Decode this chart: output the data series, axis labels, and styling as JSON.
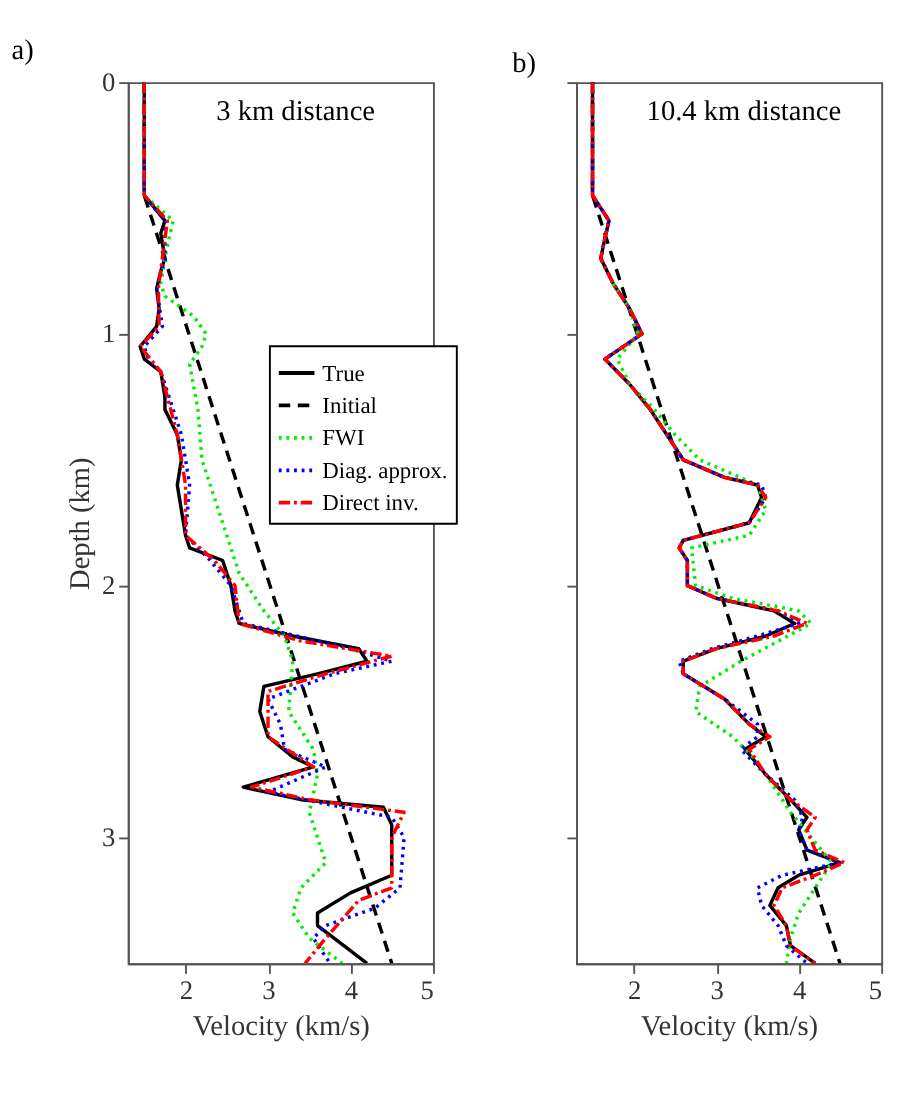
{
  "chart_data": [
    {
      "type": "line",
      "title": "a)",
      "annotations": [
        "3 km distance"
      ],
      "xlabel": "Velocity (km/s)",
      "ylabel": "Depth (km)",
      "xlim": [
        1.3,
        5
      ],
      "xticks": [
        2,
        3,
        4,
        5
      ],
      "ylim": [
        3.5,
        0
      ],
      "yticks": [
        0,
        1,
        2,
        3
      ],
      "grid": false,
      "legend": "right",
      "series": [
        {
          "name": "True",
          "color": "#000000",
          "line_style": "solid",
          "x": [
            1.5,
            1.5,
            1.75,
            1.7,
            1.75,
            1.7,
            1.65,
            1.68,
            1.65,
            1.45,
            1.5,
            1.7,
            1.75,
            1.75,
            1.9,
            1.95,
            1.9,
            1.95,
            2.0,
            2.05,
            2.45,
            2.55,
            2.6,
            2.65,
            3.3,
            4.1,
            4.2,
            3.6,
            2.95,
            2.9,
            3.0,
            3.3,
            3.55,
            2.7,
            3.4,
            4.4,
            4.5,
            4.5,
            4.0,
            3.6,
            3.6,
            3.8,
            4.2
          ],
          "values": [
            0,
            0.45,
            0.55,
            0.6,
            0.7,
            0.75,
            0.82,
            0.9,
            0.97,
            1.05,
            1.1,
            1.15,
            1.25,
            1.3,
            1.4,
            1.5,
            1.6,
            1.7,
            1.8,
            1.85,
            1.9,
            2.0,
            2.1,
            2.15,
            2.2,
            2.25,
            2.3,
            2.35,
            2.4,
            2.5,
            2.6,
            2.68,
            2.72,
            2.8,
            2.85,
            2.88,
            2.95,
            3.15,
            3.22,
            3.3,
            3.35,
            3.4,
            3.5
          ]
        },
        {
          "name": "Initial",
          "color": "#000000",
          "line_style": "dashed",
          "x": [
            1.5,
            1.5,
            4.5
          ],
          "values": [
            0,
            0.45,
            3.5
          ]
        },
        {
          "name": "FWI",
          "color": "#00ee00",
          "line_style": "dotted",
          "x": [
            1.5,
            1.5,
            1.85,
            1.8,
            1.75,
            1.7,
            1.75,
            2.1,
            2.25,
            2.2,
            2.05,
            2.15,
            2.2,
            2.4,
            2.65,
            2.95,
            3.2,
            3.3,
            3.25,
            3.55,
            3.6,
            3.5,
            3.7,
            3.4,
            3.3,
            3.5,
            3.9
          ],
          "values": [
            0,
            0.45,
            0.55,
            0.62,
            0.7,
            0.8,
            0.85,
            0.93,
            1.0,
            1.05,
            1.12,
            1.3,
            1.5,
            1.7,
            1.95,
            2.1,
            2.2,
            2.3,
            2.5,
            2.65,
            2.75,
            2.9,
            3.1,
            3.2,
            3.3,
            3.4,
            3.5
          ]
        },
        {
          "name": "Diag. approx.",
          "color": "#0000ff",
          "line_style": "dotted",
          "x": [
            1.5,
            1.5,
            1.75,
            1.75,
            1.65,
            1.72,
            1.5,
            1.55,
            1.7,
            1.95,
            2.05,
            2.0,
            2.3,
            2.55,
            2.7,
            4.0,
            4.5,
            3.8,
            3.0,
            3.15,
            3.2,
            3.7,
            3.0,
            4.5,
            4.65,
            4.6,
            4.3,
            3.7,
            3.55,
            3.75
          ],
          "values": [
            0,
            0.45,
            0.55,
            0.7,
            0.82,
            0.97,
            1.05,
            1.1,
            1.15,
            1.4,
            1.6,
            1.8,
            1.9,
            2.0,
            2.15,
            2.25,
            2.3,
            2.35,
            2.45,
            2.55,
            2.65,
            2.72,
            2.82,
            2.92,
            3.0,
            3.2,
            3.28,
            3.35,
            3.4,
            3.5
          ]
        },
        {
          "name": "Direct inv.",
          "color": "#ff0000",
          "line_style": "dashdot",
          "x": [
            1.5,
            1.5,
            1.78,
            1.67,
            1.68,
            1.45,
            1.7,
            1.9,
            2.0,
            2.0,
            2.35,
            2.6,
            2.65,
            3.4,
            4.5,
            3.7,
            3.0,
            3.0,
            3.55,
            2.8,
            3.5,
            4.65,
            4.5,
            4.5,
            4.5,
            4.1,
            3.7,
            3.45
          ],
          "values": [
            0,
            0.45,
            0.55,
            0.82,
            0.97,
            1.05,
            1.15,
            1.4,
            1.6,
            1.8,
            1.9,
            2.0,
            2.15,
            2.22,
            2.28,
            2.35,
            2.42,
            2.6,
            2.72,
            2.8,
            2.85,
            2.9,
            3.0,
            3.1,
            3.2,
            3.25,
            3.4,
            3.5
          ]
        }
      ]
    },
    {
      "type": "line",
      "title": "b)",
      "annotations": [
        "10.4 km distance"
      ],
      "xlabel": "Velocity (km/s)",
      "xlim": [
        1.3,
        5
      ],
      "xticks": [
        2,
        3,
        4,
        5
      ],
      "ylim": [
        3.5,
        0
      ],
      "yticks": [
        0,
        1,
        2,
        3
      ],
      "tick_labels": "x",
      "grid": false,
      "series": [
        {
          "color": "#000000",
          "line_style": "solid",
          "x": [
            1.5,
            1.5,
            1.7,
            1.65,
            1.6,
            1.75,
            1.95,
            2.1,
            1.65,
            1.95,
            2.2,
            2.4,
            2.6,
            3.1,
            3.5,
            3.55,
            3.4,
            2.6,
            2.55,
            2.65,
            2.65,
            3.0,
            3.7,
            3.95,
            3.6,
            3.0,
            2.6,
            2.6,
            3.1,
            3.4,
            3.6,
            3.35,
            3.6,
            3.9,
            4.1,
            4.0,
            4.1,
            4.5,
            4.0,
            3.75,
            3.65,
            3.85,
            3.9,
            4.2
          ],
          "values": [
            0,
            0.45,
            0.55,
            0.62,
            0.7,
            0.8,
            0.9,
            1.0,
            1.1,
            1.2,
            1.3,
            1.4,
            1.5,
            1.57,
            1.6,
            1.65,
            1.75,
            1.82,
            1.85,
            1.9,
            2.0,
            2.05,
            2.1,
            2.15,
            2.2,
            2.25,
            2.3,
            2.35,
            2.45,
            2.55,
            2.6,
            2.65,
            2.75,
            2.85,
            2.92,
            2.97,
            3.05,
            3.1,
            3.15,
            3.2,
            3.27,
            3.35,
            3.43,
            3.5
          ]
        },
        {
          "color": "#000000",
          "line_style": "dashed",
          "x": [
            1.5,
            1.5,
            4.5
          ],
          "values": [
            0,
            0.45,
            3.5
          ]
        },
        {
          "color": "#00ee00",
          "line_style": "dotted",
          "x": [
            null,
            null,
            null,
            null,
            null,
            1.75,
            1.95,
            2.05,
            1.8,
            1.95,
            2.25,
            2.5,
            2.8,
            3.5,
            3.6,
            3.4,
            2.7,
            2.75,
            3.2,
            4.0,
            4.15,
            3.3,
            2.8,
            2.75,
            3.2,
            3.5,
            3.9,
            4.4,
            4.0,
            3.9,
            3.85
          ],
          "values": [
            null,
            null,
            null,
            null,
            null,
            0.8,
            0.9,
            1.0,
            1.1,
            1.2,
            1.3,
            1.4,
            1.5,
            1.6,
            1.7,
            1.8,
            1.85,
            2.0,
            2.05,
            2.1,
            2.15,
            2.3,
            2.4,
            2.5,
            2.6,
            2.7,
            2.9,
            3.1,
            3.3,
            3.4,
            3.5
          ]
        },
        {
          "color": "#0000ff",
          "line_style": "dotted",
          "x": [
            1.5,
            1.5,
            1.7,
            1.65,
            1.6,
            1.75,
            1.95,
            2.1,
            1.65,
            1.95,
            2.2,
            2.4,
            2.6,
            3.1,
            3.55,
            3.6,
            3.4,
            2.6,
            2.55,
            2.65,
            2.65,
            3.0,
            3.75,
            4.0,
            3.5,
            2.95,
            2.55,
            2.6,
            3.1,
            3.5,
            3.5,
            3.3,
            3.6,
            3.95,
            4.05,
            4.0,
            4.1,
            4.5,
            3.8,
            3.5,
            3.55,
            3.75,
            3.85,
            4.1
          ],
          "values": [
            0,
            0.45,
            0.55,
            0.62,
            0.7,
            0.8,
            0.9,
            1.0,
            1.1,
            1.2,
            1.3,
            1.4,
            1.5,
            1.57,
            1.6,
            1.65,
            1.75,
            1.82,
            1.85,
            1.9,
            2.0,
            2.05,
            2.1,
            2.15,
            2.2,
            2.25,
            2.3,
            2.35,
            2.45,
            2.55,
            2.6,
            2.65,
            2.75,
            2.85,
            2.92,
            2.97,
            3.05,
            3.1,
            3.15,
            3.2,
            3.27,
            3.35,
            3.43,
            3.5
          ]
        },
        {
          "color": "#ff0000",
          "line_style": "dashdot",
          "x": [
            1.5,
            1.5,
            1.7,
            1.65,
            1.6,
            1.75,
            1.95,
            2.1,
            1.65,
            1.95,
            2.2,
            2.4,
            2.6,
            3.1,
            3.5,
            3.6,
            3.4,
            2.6,
            2.55,
            2.65,
            2.65,
            3.0,
            3.75,
            4.1,
            3.7,
            3.0,
            2.6,
            2.6,
            3.1,
            3.4,
            3.65,
            3.4,
            3.6,
            3.9,
            4.2,
            4.1,
            4.2,
            4.55,
            4.2,
            3.8,
            3.7,
            3.85,
            3.9,
            4.2
          ],
          "values": [
            0,
            0.45,
            0.55,
            0.62,
            0.7,
            0.8,
            0.9,
            1.0,
            1.1,
            1.2,
            1.3,
            1.4,
            1.5,
            1.57,
            1.6,
            1.65,
            1.75,
            1.82,
            1.85,
            1.9,
            2.0,
            2.05,
            2.1,
            2.15,
            2.2,
            2.25,
            2.3,
            2.35,
            2.45,
            2.55,
            2.6,
            2.65,
            2.75,
            2.85,
            2.92,
            2.97,
            3.05,
            3.1,
            3.15,
            3.2,
            3.27,
            3.35,
            3.43,
            3.5
          ]
        }
      ]
    }
  ]
}
